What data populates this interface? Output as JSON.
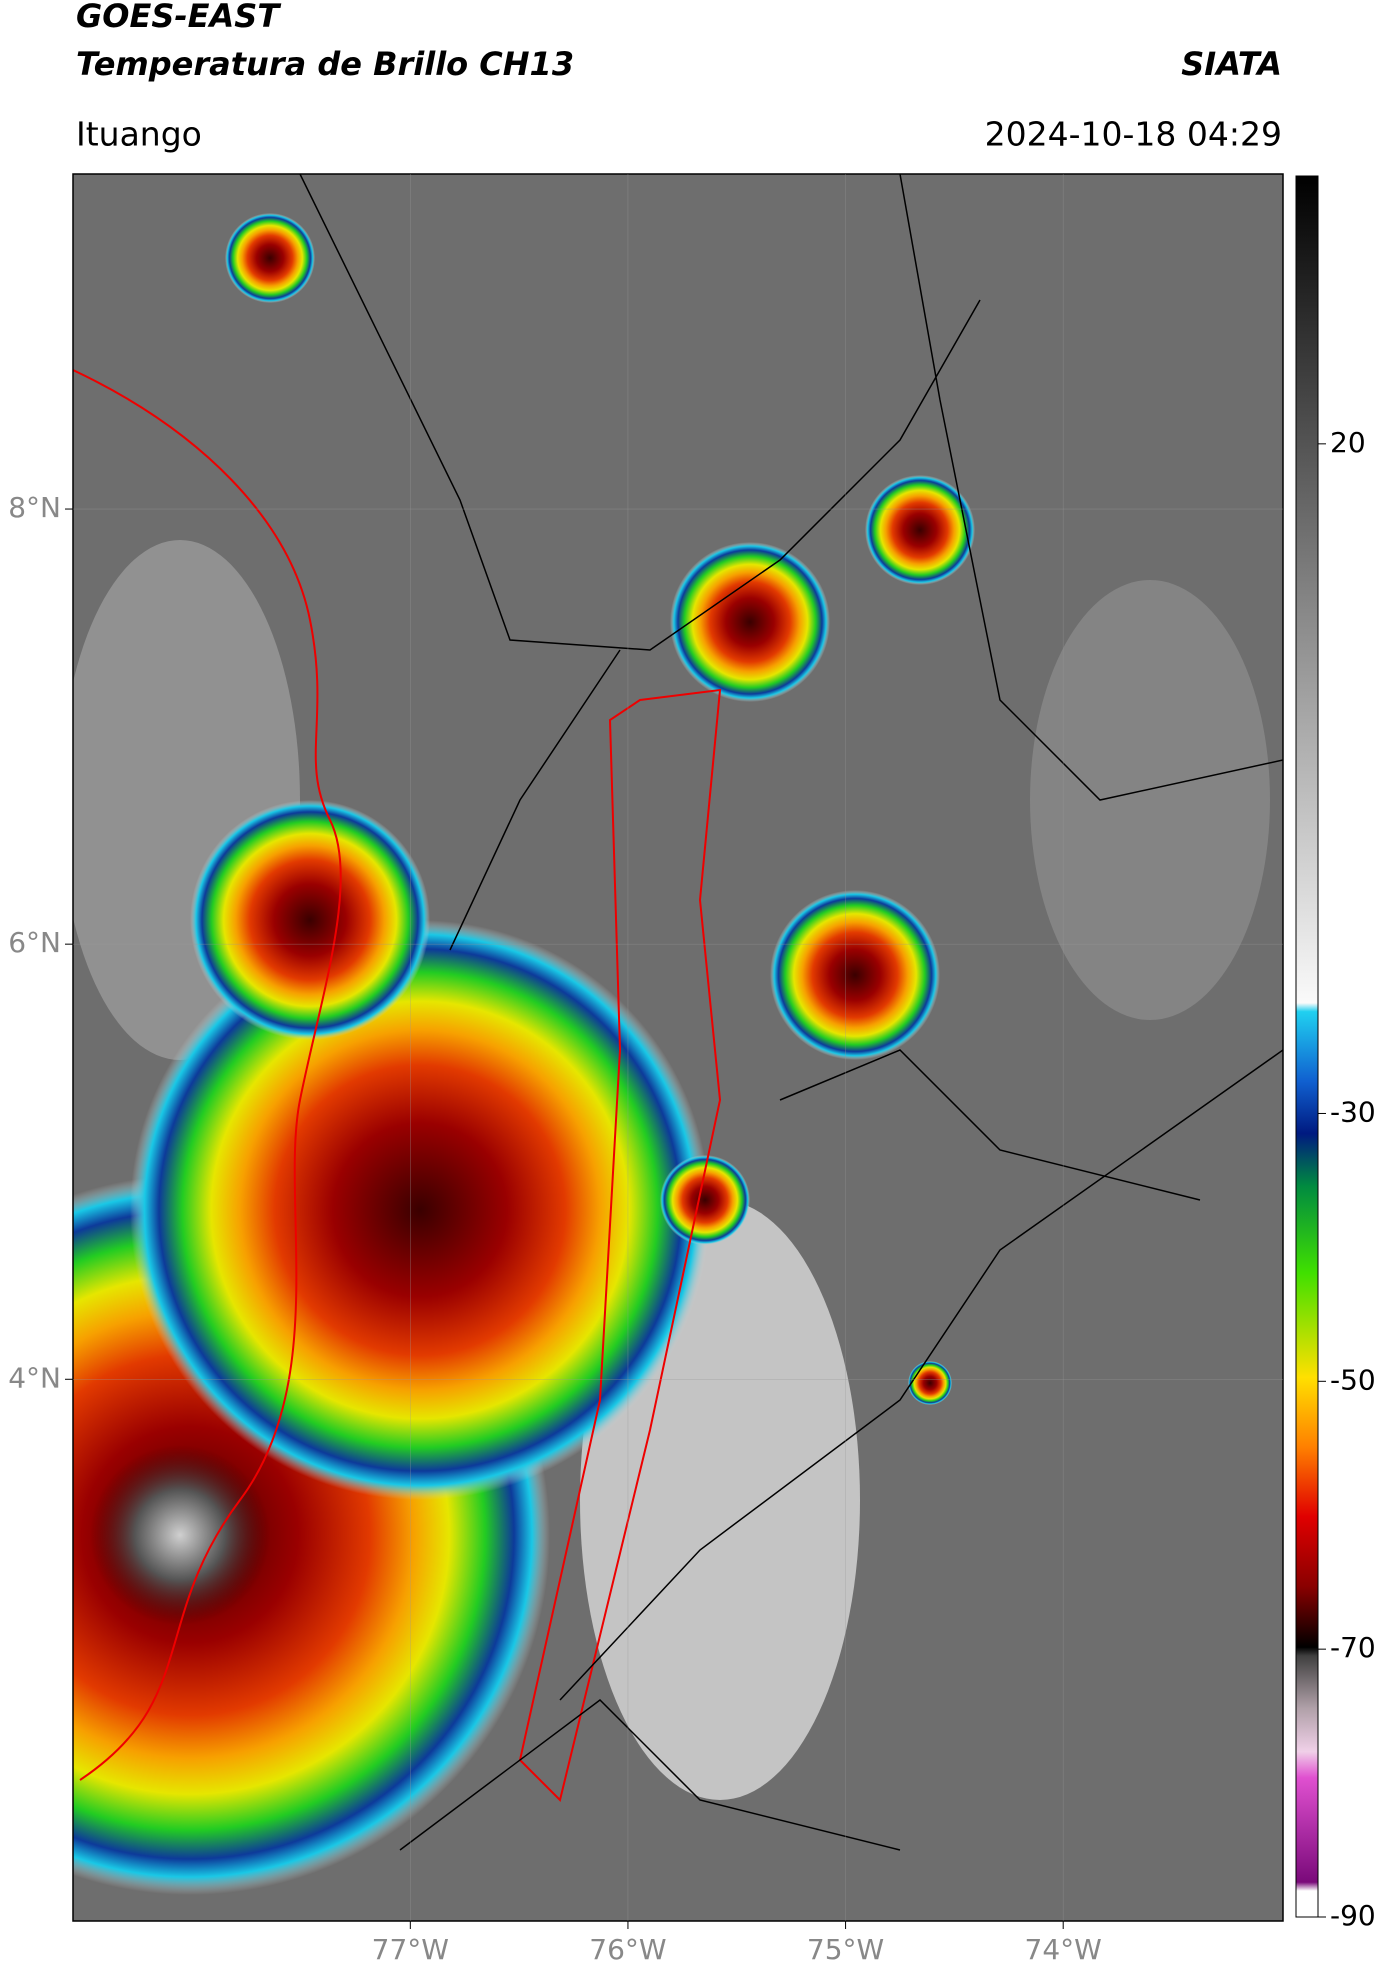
{
  "title": "GOES-EAST",
  "subtitle": "Temperatura de Brillo CH13",
  "source": "SIATA",
  "location": "Ituango",
  "datetime": "2024-10-18 04:29",
  "map": {
    "lat_lim": [
      1.51,
      9.54
    ],
    "lon_lim": [
      -78.55,
      -72.99
    ],
    "lat_ticks": [
      {
        "value": 8,
        "label": "8°N"
      },
      {
        "value": 6,
        "label": "6°N"
      },
      {
        "value": 4,
        "label": "4°N"
      }
    ],
    "lon_ticks": [
      {
        "value": -77,
        "label": "77°W"
      },
      {
        "value": -76,
        "label": "76°W"
      },
      {
        "value": -75,
        "label": "75°W"
      },
      {
        "value": -74,
        "label": "74°W"
      }
    ]
  },
  "colorbar": {
    "lim": [
      -90,
      40
    ],
    "ticks": [
      20,
      -30,
      -50,
      -70,
      -90
    ]
  }
}
